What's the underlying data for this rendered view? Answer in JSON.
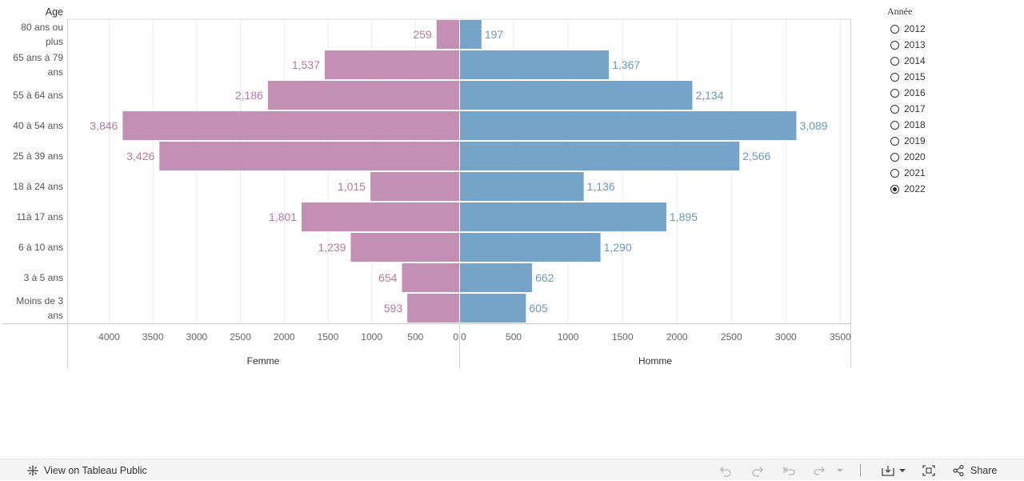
{
  "chart_data": {
    "type": "bar",
    "orientation": "horizontal",
    "layout": "population-pyramid",
    "row_header": "Age",
    "categories": [
      "80 ans ou plus",
      "65 ans à 79 ans",
      "55 à 64 ans",
      "40 à 54 ans",
      "25 à 39 ans",
      "18 à 24 ans",
      "11à 17 ans",
      "6 à 10 ans",
      "3 à 5 ans",
      "Moins de 3 ans"
    ],
    "category_lines": [
      [
        "80 ans ou",
        "plus"
      ],
      [
        "65 ans à 79",
        "ans"
      ],
      [
        "55 à 64 ans"
      ],
      [
        "40 à 54 ans"
      ],
      [
        "25 à 39 ans"
      ],
      [
        "18 à 24 ans"
      ],
      [
        "11à 17 ans"
      ],
      [
        "6 à 10 ans"
      ],
      [
        "3 à 5 ans"
      ],
      [
        "Moins de 3",
        "ans"
      ]
    ],
    "series": [
      {
        "name": "Femme",
        "side": "left",
        "color": "#c48fb4",
        "label_color": "#b979a6",
        "values": [
          259,
          1537,
          2186,
          3846,
          3426,
          1015,
          1801,
          1239,
          654,
          593
        ],
        "labels": [
          "259",
          "1,537",
          "2,186",
          "3,846",
          "3,426",
          "1,015",
          "1,801",
          "1,239",
          "654",
          "593"
        ]
      },
      {
        "name": "Homme",
        "side": "right",
        "color": "#76a3c8",
        "label_color": "#6a9bc3",
        "values": [
          197,
          1367,
          2134,
          3089,
          2566,
          1136,
          1895,
          1290,
          662,
          605
        ],
        "labels": [
          "197",
          "1,367",
          "2,134",
          "3,089",
          "2,566",
          "1,136",
          "1,895",
          "1,290",
          "662",
          "605"
        ]
      }
    ],
    "x_left_axis": {
      "label": "Femme",
      "range": [
        4480,
        0
      ],
      "ticks": [
        4000,
        3500,
        3000,
        2500,
        2000,
        1500,
        1000,
        500,
        0
      ]
    },
    "x_right_axis": {
      "label": "Homme",
      "range": [
        0,
        3600
      ],
      "ticks": [
        0,
        500,
        1000,
        1500,
        2000,
        2500,
        3000,
        3500
      ]
    },
    "grid": true
  },
  "legend": {
    "title": "Année",
    "options": [
      "2012",
      "2013",
      "2014",
      "2015",
      "2016",
      "2017",
      "2018",
      "2019",
      "2020",
      "2021",
      "2022"
    ],
    "selected": "2022"
  },
  "toolbar": {
    "view_label": "View on Tableau Public",
    "share_label": "Share"
  }
}
